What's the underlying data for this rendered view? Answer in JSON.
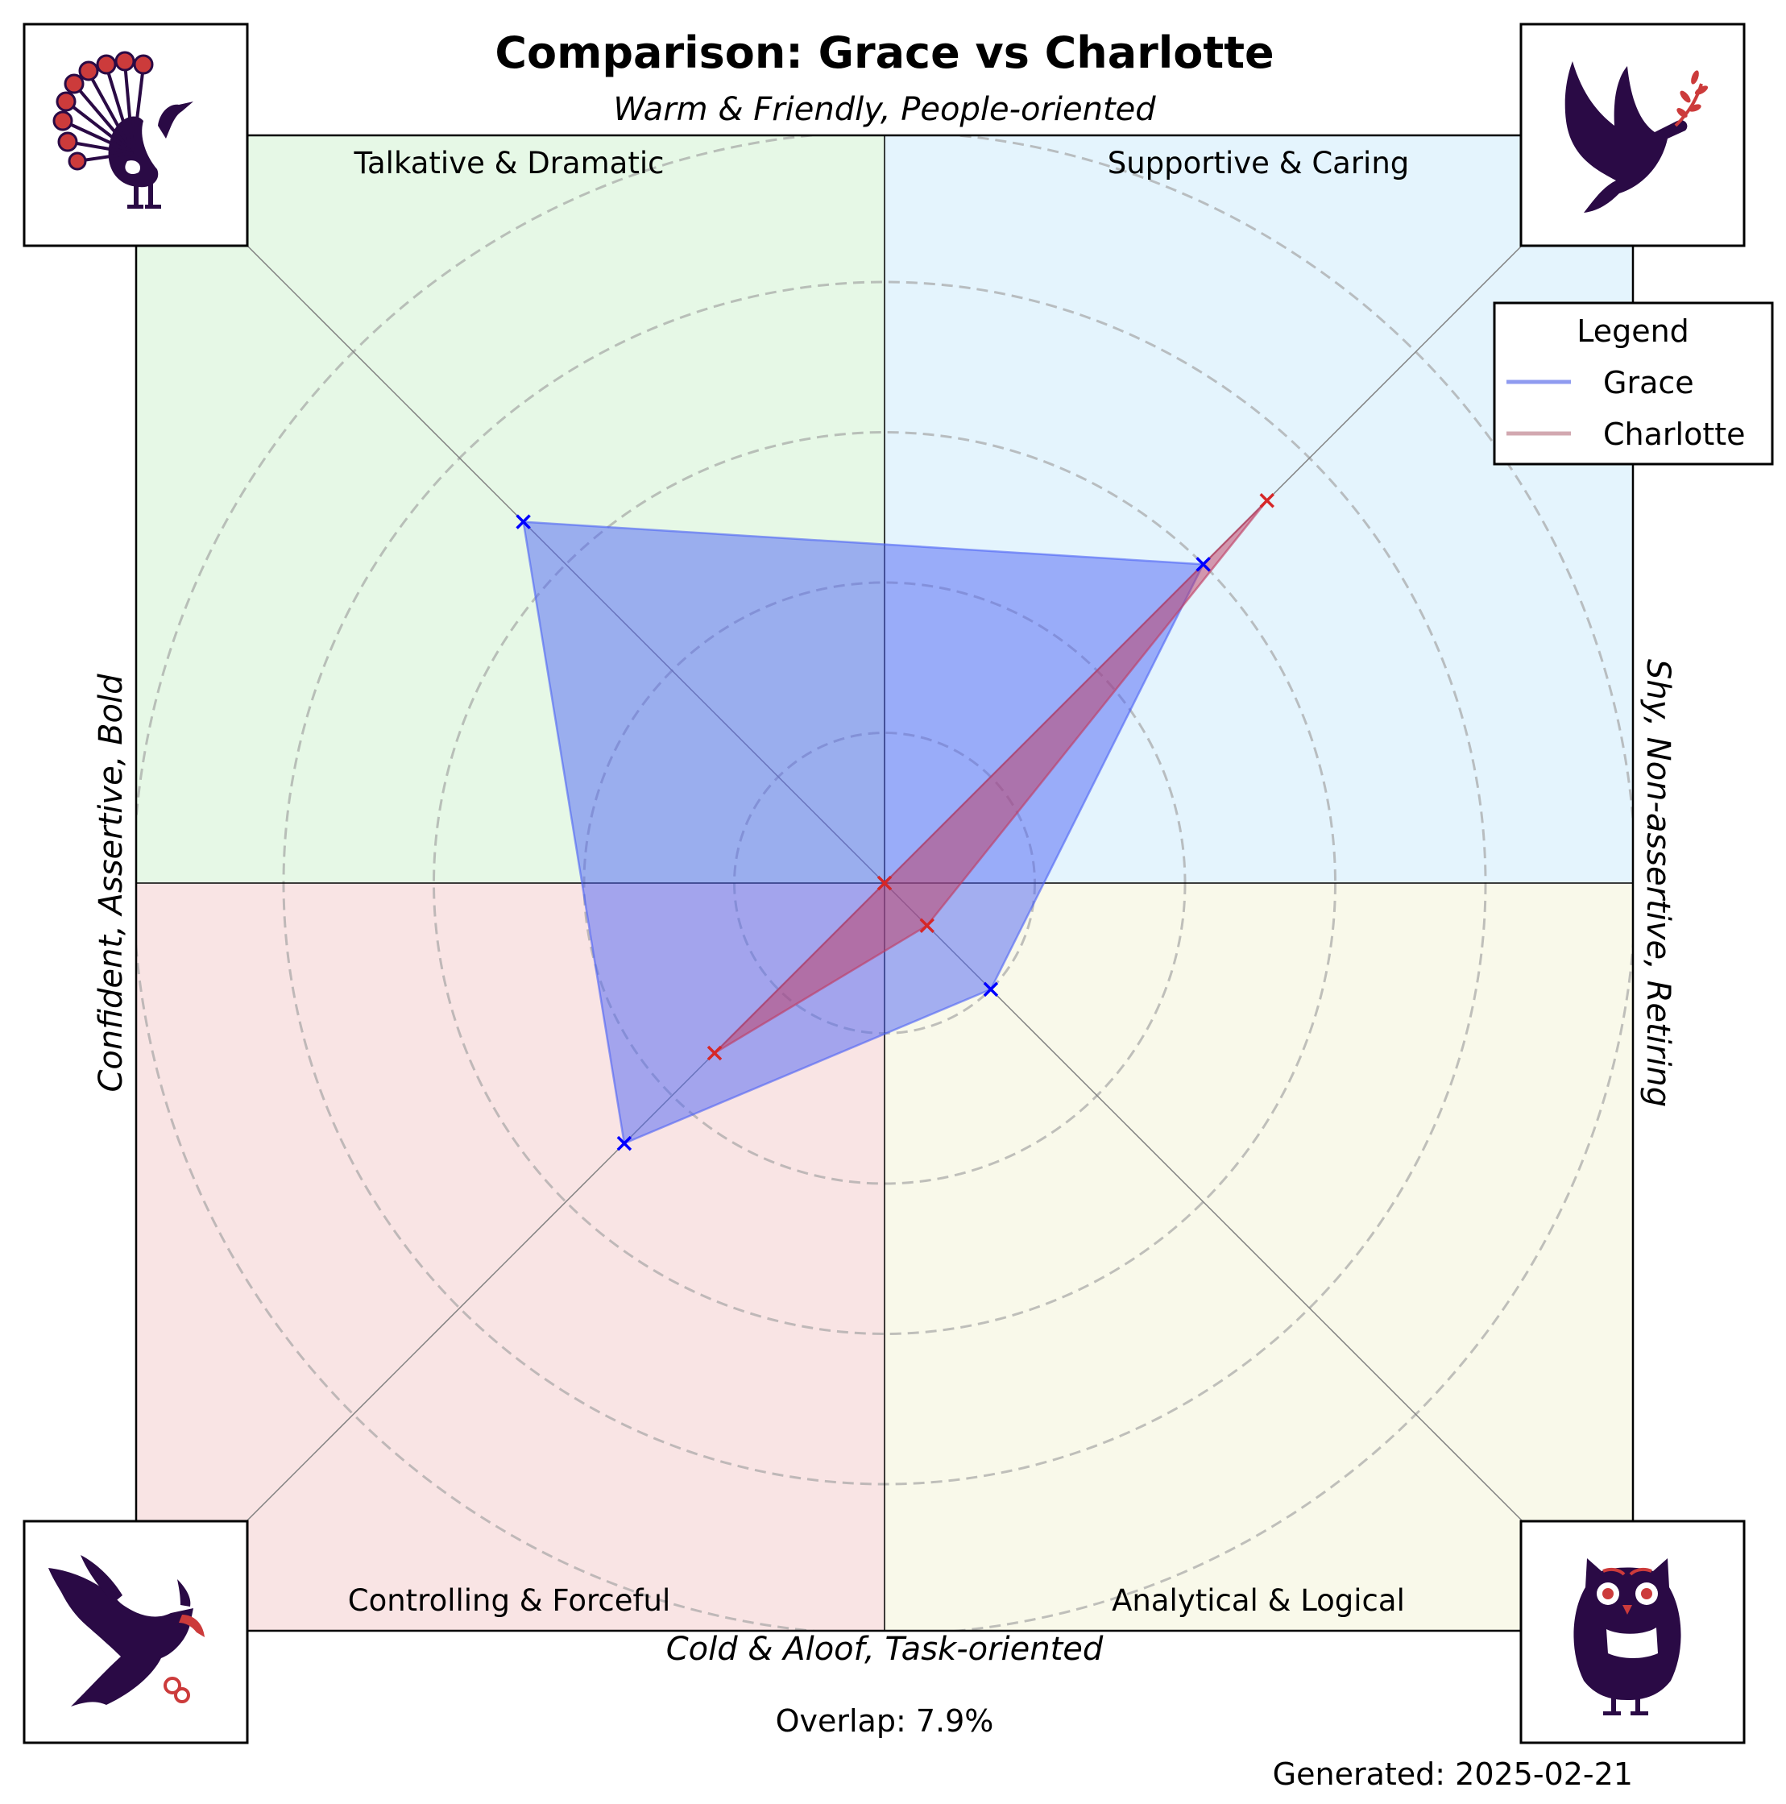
{
  "title": "Comparison: Grace vs Charlotte",
  "axis_labels": {
    "top": "Warm & Friendly, People-oriented",
    "bottom": "Cold & Aloof, Task-oriented",
    "left": "Confident, Assertive, Bold",
    "right": "Shy, Non-assertive, Retiring"
  },
  "quadrants": [
    {
      "label": "Talkative & Dramatic",
      "position": "top-left",
      "color": "#e6f8e6",
      "animal": "peacock-icon"
    },
    {
      "label": "Supportive & Caring",
      "position": "top-right",
      "color": "#e4f4fd",
      "animal": "dove-icon"
    },
    {
      "label": "Controlling & Forceful",
      "position": "bottom-left",
      "color": "#f9e4e4",
      "animal": "eagle-icon"
    },
    {
      "label": "Analytical & Logical",
      "position": "bottom-right",
      "color": "#f9f9ea",
      "animal": "owl-icon"
    }
  ],
  "legend": {
    "title": "Legend",
    "placement": "upper-right",
    "items": [
      {
        "name": "Grace",
        "color": "#8f9bf0"
      },
      {
        "name": "Charlotte",
        "color": "#d2a8b0"
      }
    ]
  },
  "chart_data": {
    "type": "radar",
    "axes": [
      "Talkative & Dramatic",
      "Supportive & Caring",
      "Analytical & Logical",
      "Controlling & Forceful"
    ],
    "axis_directions_deg": [
      135,
      45,
      -45,
      -135
    ],
    "range": [
      0,
      5
    ],
    "rings": [
      1,
      2,
      3,
      4,
      5
    ],
    "grid": true,
    "series": [
      {
        "name": "Grace",
        "values": [
          3.4,
          3.0,
          1.0,
          2.45
        ],
        "fill": "#4d63f5",
        "marker_color": "#0000ff"
      },
      {
        "name": "Charlotte",
        "values": [
          0.0,
          3.6,
          0.4,
          1.6
        ],
        "fill": "#c03a60",
        "marker_color": "#d62728"
      }
    ]
  },
  "overlap_text": "Overlap: 7.9%",
  "generated_text": "Generated: 2025-02-21",
  "icon_colors": {
    "dark": "#2a0a45",
    "accent": "#cc3b3b"
  }
}
